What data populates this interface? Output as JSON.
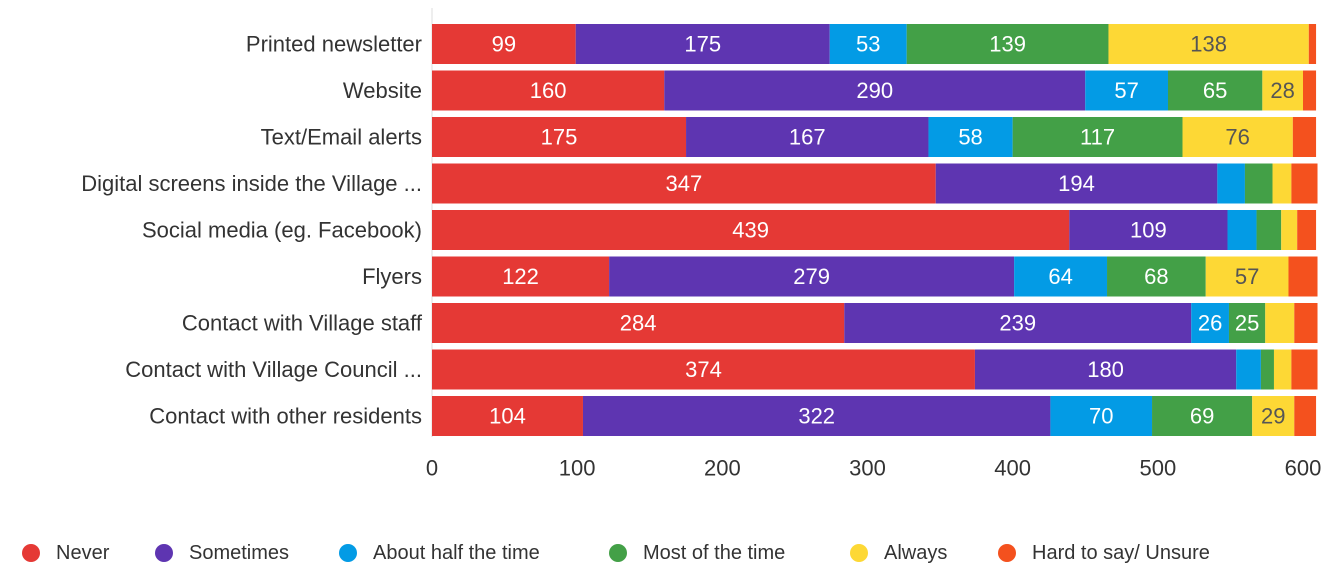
{
  "chart_data": {
    "type": "bar",
    "orientation": "horizontal",
    "stacked": true,
    "categories": [
      "Printed newsletter",
      "Website",
      "Text/Email alerts",
      "Digital screens inside the Village ...",
      "Social media (eg. Facebook)",
      "Flyers",
      "Contact with Village staff",
      "Contact with Village Council ...",
      "Contact with other residents"
    ],
    "series": [
      {
        "name": "Never",
        "color": "#e53935",
        "values": [
          99,
          160,
          175,
          347,
          439,
          122,
          284,
          374,
          104
        ]
      },
      {
        "name": "Sometimes",
        "color": "#5e35b1",
        "values": [
          175,
          290,
          167,
          194,
          109,
          279,
          239,
          180,
          322
        ]
      },
      {
        "name": "About half the time",
        "color": "#039be5",
        "values": [
          53,
          57,
          58,
          19,
          20,
          64,
          26,
          17,
          70
        ]
      },
      {
        "name": "Most of the time",
        "color": "#43a047",
        "values": [
          139,
          65,
          117,
          19,
          17,
          68,
          25,
          9,
          69
        ]
      },
      {
        "name": "Always",
        "color": "#fdd835",
        "values": [
          138,
          28,
          76,
          13,
          11,
          57,
          20,
          12,
          29
        ]
      },
      {
        "name": "Hard to say/ Unsure",
        "color": "#f4511e",
        "values": [
          5,
          9,
          16,
          18,
          13,
          20,
          16,
          18,
          15
        ]
      }
    ],
    "xlim": [
      0,
      600
    ],
    "xticks": [
      0,
      100,
      200,
      300,
      400,
      500,
      600
    ],
    "grid": false,
    "legend_position": "bottom"
  }
}
